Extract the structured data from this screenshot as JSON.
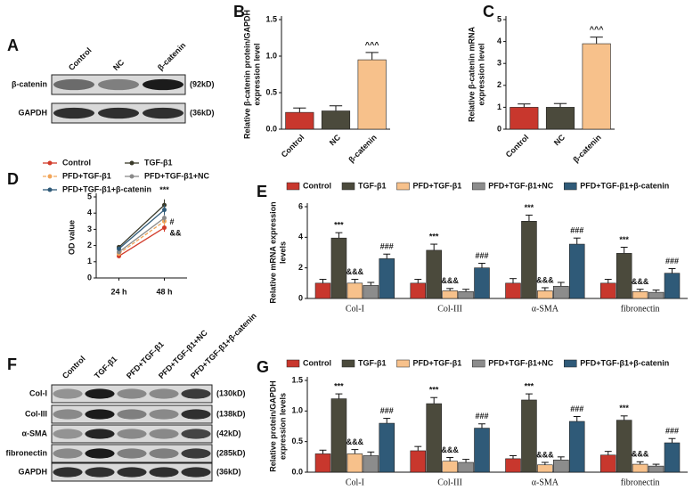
{
  "chart_data": [
    {
      "type": "blot",
      "label": "A",
      "columns": [
        "Control",
        "NC",
        "β-catenin"
      ],
      "rows": [
        {
          "name": "β-catenin",
          "size": "(92kD)"
        },
        {
          "name": "GAPDH",
          "size": "(36kD)"
        }
      ]
    },
    {
      "type": "bar",
      "label": "B",
      "ylabel": [
        "Relative β-catenin protein/GAPDH",
        "expression level"
      ],
      "categories": [
        "Control",
        "NC",
        "β-catenin"
      ],
      "series": [
        {
          "values": [
            0.23,
            0.25,
            0.95
          ],
          "errors": [
            0.06,
            0.07,
            0.1
          ],
          "colors": [
            "#c8372d",
            "#4b4a3c",
            "#f7c18b"
          ],
          "annotations": [
            null,
            null,
            "^^^"
          ]
        }
      ],
      "ylim": [
        0,
        1.5
      ],
      "yticks": [
        {
          "value": 0,
          "label": "0.0"
        },
        0.5,
        {
          "value": 1,
          "label": "1.0"
        },
        1.5
      ]
    },
    {
      "type": "bar",
      "label": "C",
      "ylabel": [
        "Relative β-catenin mRNA",
        "expression level"
      ],
      "categories": [
        "Control",
        "NC",
        "β-catenin"
      ],
      "series": [
        {
          "values": [
            1.0,
            1.0,
            3.9
          ],
          "errors": [
            0.15,
            0.17,
            0.3
          ],
          "colors": [
            "#c8372d",
            "#4b4a3c",
            "#f7c18b"
          ],
          "annotations": [
            null,
            null,
            "^^^"
          ]
        }
      ],
      "ylim": [
        0,
        5
      ],
      "yticks": [
        0,
        1,
        2,
        3,
        4,
        5
      ]
    },
    {
      "type": "line",
      "label": "D",
      "ylabel": [
        "OD value"
      ],
      "categories": [
        "24 h",
        "48 h"
      ],
      "series": [
        {
          "name": "Control",
          "color": "#d23b2a",
          "values": [
            1.35,
            3.1
          ],
          "errors": [
            0.12,
            0.25
          ],
          "annotations": [
            null,
            null
          ]
        },
        {
          "name": "TGF-β1",
          "color": "#3a3a2a",
          "values": [
            1.9,
            4.5
          ],
          "errors": [
            0.12,
            0.35
          ],
          "annotations": [
            null,
            "***"
          ]
        },
        {
          "name": "PFD+TGF-β1",
          "color": "#f2a65a",
          "dash": true,
          "values": [
            1.5,
            3.5
          ],
          "errors": [
            0.12,
            0.25
          ],
          "annotations": [
            null,
            "&&"
          ]
        },
        {
          "name": "PFD+TGF-β1+NC",
          "color": "#8a8a8a",
          "values": [
            1.6,
            3.7
          ],
          "errors": [
            0.12,
            0.25
          ],
          "annotations": [
            null,
            null
          ]
        },
        {
          "name": "PFD+TGF-β1+β-catenin",
          "color": "#2f5a78",
          "values": [
            1.8,
            4.2
          ],
          "errors": [
            0.12,
            0.3
          ],
          "annotations": [
            null,
            "#"
          ]
        }
      ],
      "ylim": [
        0,
        5
      ],
      "yticks": [
        0,
        1,
        2,
        3,
        4,
        5
      ]
    },
    {
      "type": "bar",
      "label": "E",
      "ylabel": [
        "Relative mRNA expression",
        "levels"
      ],
      "categories": [
        "Col-I",
        "Col-III",
        "α-SMA",
        "fibronectin"
      ],
      "series": [
        {
          "name": "Control",
          "color": "#c8372d",
          "values": [
            1.0,
            1.0,
            1.0,
            1.0
          ],
          "errors": [
            0.25,
            0.25,
            0.3,
            0.25
          ],
          "annotations": [
            null,
            null,
            null,
            null
          ]
        },
        {
          "name": "TGF-β1",
          "color": "#4b4a3c",
          "values": [
            3.95,
            3.15,
            5.05,
            2.95
          ],
          "errors": [
            0.35,
            0.4,
            0.4,
            0.4
          ],
          "annotations": [
            "***",
            "***",
            "***",
            "***"
          ]
        },
        {
          "name": "PFD+TGF-β1",
          "color": "#f7c18b",
          "values": [
            1.0,
            0.5,
            0.5,
            0.45
          ],
          "errors": [
            0.25,
            0.15,
            0.2,
            0.15
          ],
          "annotations": [
            "&&&",
            "&&&",
            "&&&",
            "&&&"
          ]
        },
        {
          "name": "PFD+TGF-β1+NC",
          "color": "#8c8c8c",
          "values": [
            0.85,
            0.45,
            0.8,
            0.4
          ],
          "errors": [
            0.2,
            0.15,
            0.25,
            0.15
          ],
          "annotations": [
            null,
            null,
            null,
            null
          ]
        },
        {
          "name": "PFD+TGF-β1+β-catenin",
          "color": "#2f5a78",
          "values": [
            2.6,
            2.0,
            3.55,
            1.65
          ],
          "errors": [
            0.3,
            0.3,
            0.4,
            0.3
          ],
          "annotations": [
            "###",
            "###",
            "###",
            "###"
          ]
        }
      ],
      "ylim": [
        0,
        6
      ],
      "yticks": [
        0,
        2,
        4,
        6
      ]
    },
    {
      "type": "blot",
      "label": "F",
      "columns": [
        "Control",
        "TGF-β1",
        "PFD+TGF-β1",
        "PFD+TGF-β1+NC",
        "PFD+TGF-β1+β-catenin"
      ],
      "rows": [
        {
          "name": "Col-I",
          "size": "(130kD)"
        },
        {
          "name": "Col-III",
          "size": "(138kD)"
        },
        {
          "name": "α-SMA",
          "size": "(42kD)"
        },
        {
          "name": "fibronectin",
          "size": "(285kD)"
        },
        {
          "name": "GAPDH",
          "size": "(36kD)"
        }
      ]
    },
    {
      "type": "bar",
      "label": "G",
      "ylabel": [
        "Relative protein/GAPDH",
        "expression levels"
      ],
      "categories": [
        "Col-I",
        "Col-III",
        "α-SMA",
        "fibronectin"
      ],
      "series": [
        {
          "name": "Control",
          "color": "#c8372d",
          "values": [
            0.3,
            0.35,
            0.22,
            0.28
          ],
          "errors": [
            0.06,
            0.07,
            0.05,
            0.06
          ],
          "annotations": [
            null,
            null,
            null,
            null
          ]
        },
        {
          "name": "TGF-β1",
          "color": "#4b4a3c",
          "values": [
            1.2,
            1.12,
            1.18,
            0.85
          ],
          "errors": [
            0.08,
            0.1,
            0.1,
            0.07
          ],
          "annotations": [
            "***",
            "***",
            "***",
            "***"
          ]
        },
        {
          "name": "PFD+TGF-β1",
          "color": "#f7c18b",
          "values": [
            0.3,
            0.18,
            0.12,
            0.13
          ],
          "errors": [
            0.07,
            0.06,
            0.04,
            0.04
          ],
          "annotations": [
            "&&&",
            "&&&",
            "&&&",
            "&&&"
          ]
        },
        {
          "name": "PFD+TGF-β1+NC",
          "color": "#8c8c8c",
          "values": [
            0.27,
            0.16,
            0.2,
            0.1
          ],
          "errors": [
            0.06,
            0.05,
            0.05,
            0.03
          ],
          "annotations": [
            null,
            null,
            null,
            null
          ]
        },
        {
          "name": "PFD+TGF-β1+β-catenin",
          "color": "#2f5a78",
          "values": [
            0.8,
            0.72,
            0.83,
            0.48
          ],
          "errors": [
            0.08,
            0.07,
            0.08,
            0.07
          ],
          "annotations": [
            "###",
            "###",
            "###",
            "###"
          ]
        }
      ],
      "ylim": [
        0,
        1.5
      ],
      "yticks": [
        {
          "value": 0,
          "label": "0.0"
        },
        0.5,
        {
          "value": 1,
          "label": "1.0"
        },
        1.5
      ]
    }
  ]
}
